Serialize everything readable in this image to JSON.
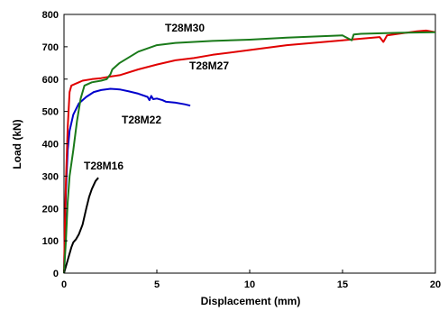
{
  "chart_data": {
    "type": "line",
    "title": "",
    "xlabel": "Displacement (mm)",
    "ylabel": "Load (kN)",
    "xlim": [
      0,
      20
    ],
    "ylim": [
      0,
      800
    ],
    "xticks": [
      0,
      5,
      10,
      15,
      20
    ],
    "yticks": [
      0,
      100,
      200,
      300,
      400,
      500,
      600,
      700,
      800
    ],
    "grid": false,
    "legend": "none",
    "series": [
      {
        "name": "T28M16",
        "color": "#000000",
        "x": [
          0,
          0.2,
          0.4,
          0.5,
          0.65,
          0.8,
          1.0,
          1.2,
          1.35,
          1.5,
          1.7,
          1.85
        ],
        "y": [
          0,
          40,
          80,
          95,
          105,
          120,
          150,
          200,
          235,
          260,
          285,
          295
        ]
      },
      {
        "name": "T28M22",
        "color": "#0000cc",
        "x": [
          0,
          0.05,
          0.1,
          0.2,
          0.3,
          0.5,
          0.8,
          1.2,
          1.6,
          2.0,
          2.5,
          3.0,
          3.5,
          4.0,
          4.5,
          4.6,
          4.7,
          4.8,
          5.0,
          5.3,
          5.5,
          6.0,
          6.5,
          6.8
        ],
        "y": [
          0,
          120,
          250,
          380,
          440,
          490,
          525,
          545,
          560,
          566,
          570,
          568,
          562,
          555,
          545,
          535,
          548,
          538,
          540,
          535,
          530,
          527,
          522,
          518
        ]
      },
      {
        "name": "T28M27",
        "color": "#e00000",
        "x": [
          0,
          0.05,
          0.1,
          0.2,
          0.3,
          0.4,
          0.6,
          0.8,
          1.0,
          1.5,
          2.0,
          2.5,
          3.0,
          4.0,
          5.0,
          6.0,
          7.0,
          8.0,
          10.0,
          12.0,
          15.0,
          17.0,
          17.2,
          17.4,
          18.0,
          19.0,
          19.5,
          20.0
        ],
        "y": [
          0,
          150,
          280,
          450,
          560,
          580,
          585,
          590,
          595,
          600,
          603,
          608,
          612,
          630,
          645,
          658,
          665,
          675,
          690,
          705,
          720,
          730,
          715,
          735,
          740,
          748,
          750,
          745
        ]
      },
      {
        "name": "T28M30",
        "color": "#1a7a1a",
        "x": [
          0,
          0.1,
          0.2,
          0.3,
          0.5,
          0.7,
          0.9,
          1.1,
          1.5,
          2.0,
          2.3,
          2.5,
          2.6,
          3.0,
          4.0,
          5.0,
          6.0,
          7.0,
          8.0,
          10.0,
          12.0,
          15.0,
          15.5,
          15.6,
          16.0,
          18.0,
          20.0
        ],
        "y": [
          0,
          100,
          220,
          300,
          380,
          470,
          540,
          580,
          590,
          595,
          600,
          615,
          630,
          650,
          685,
          705,
          712,
          715,
          718,
          722,
          728,
          735,
          720,
          738,
          740,
          743,
          745
        ]
      }
    ],
    "annotations": [
      "T28M30",
      "T28M27",
      "T28M22",
      "T28M16"
    ]
  }
}
